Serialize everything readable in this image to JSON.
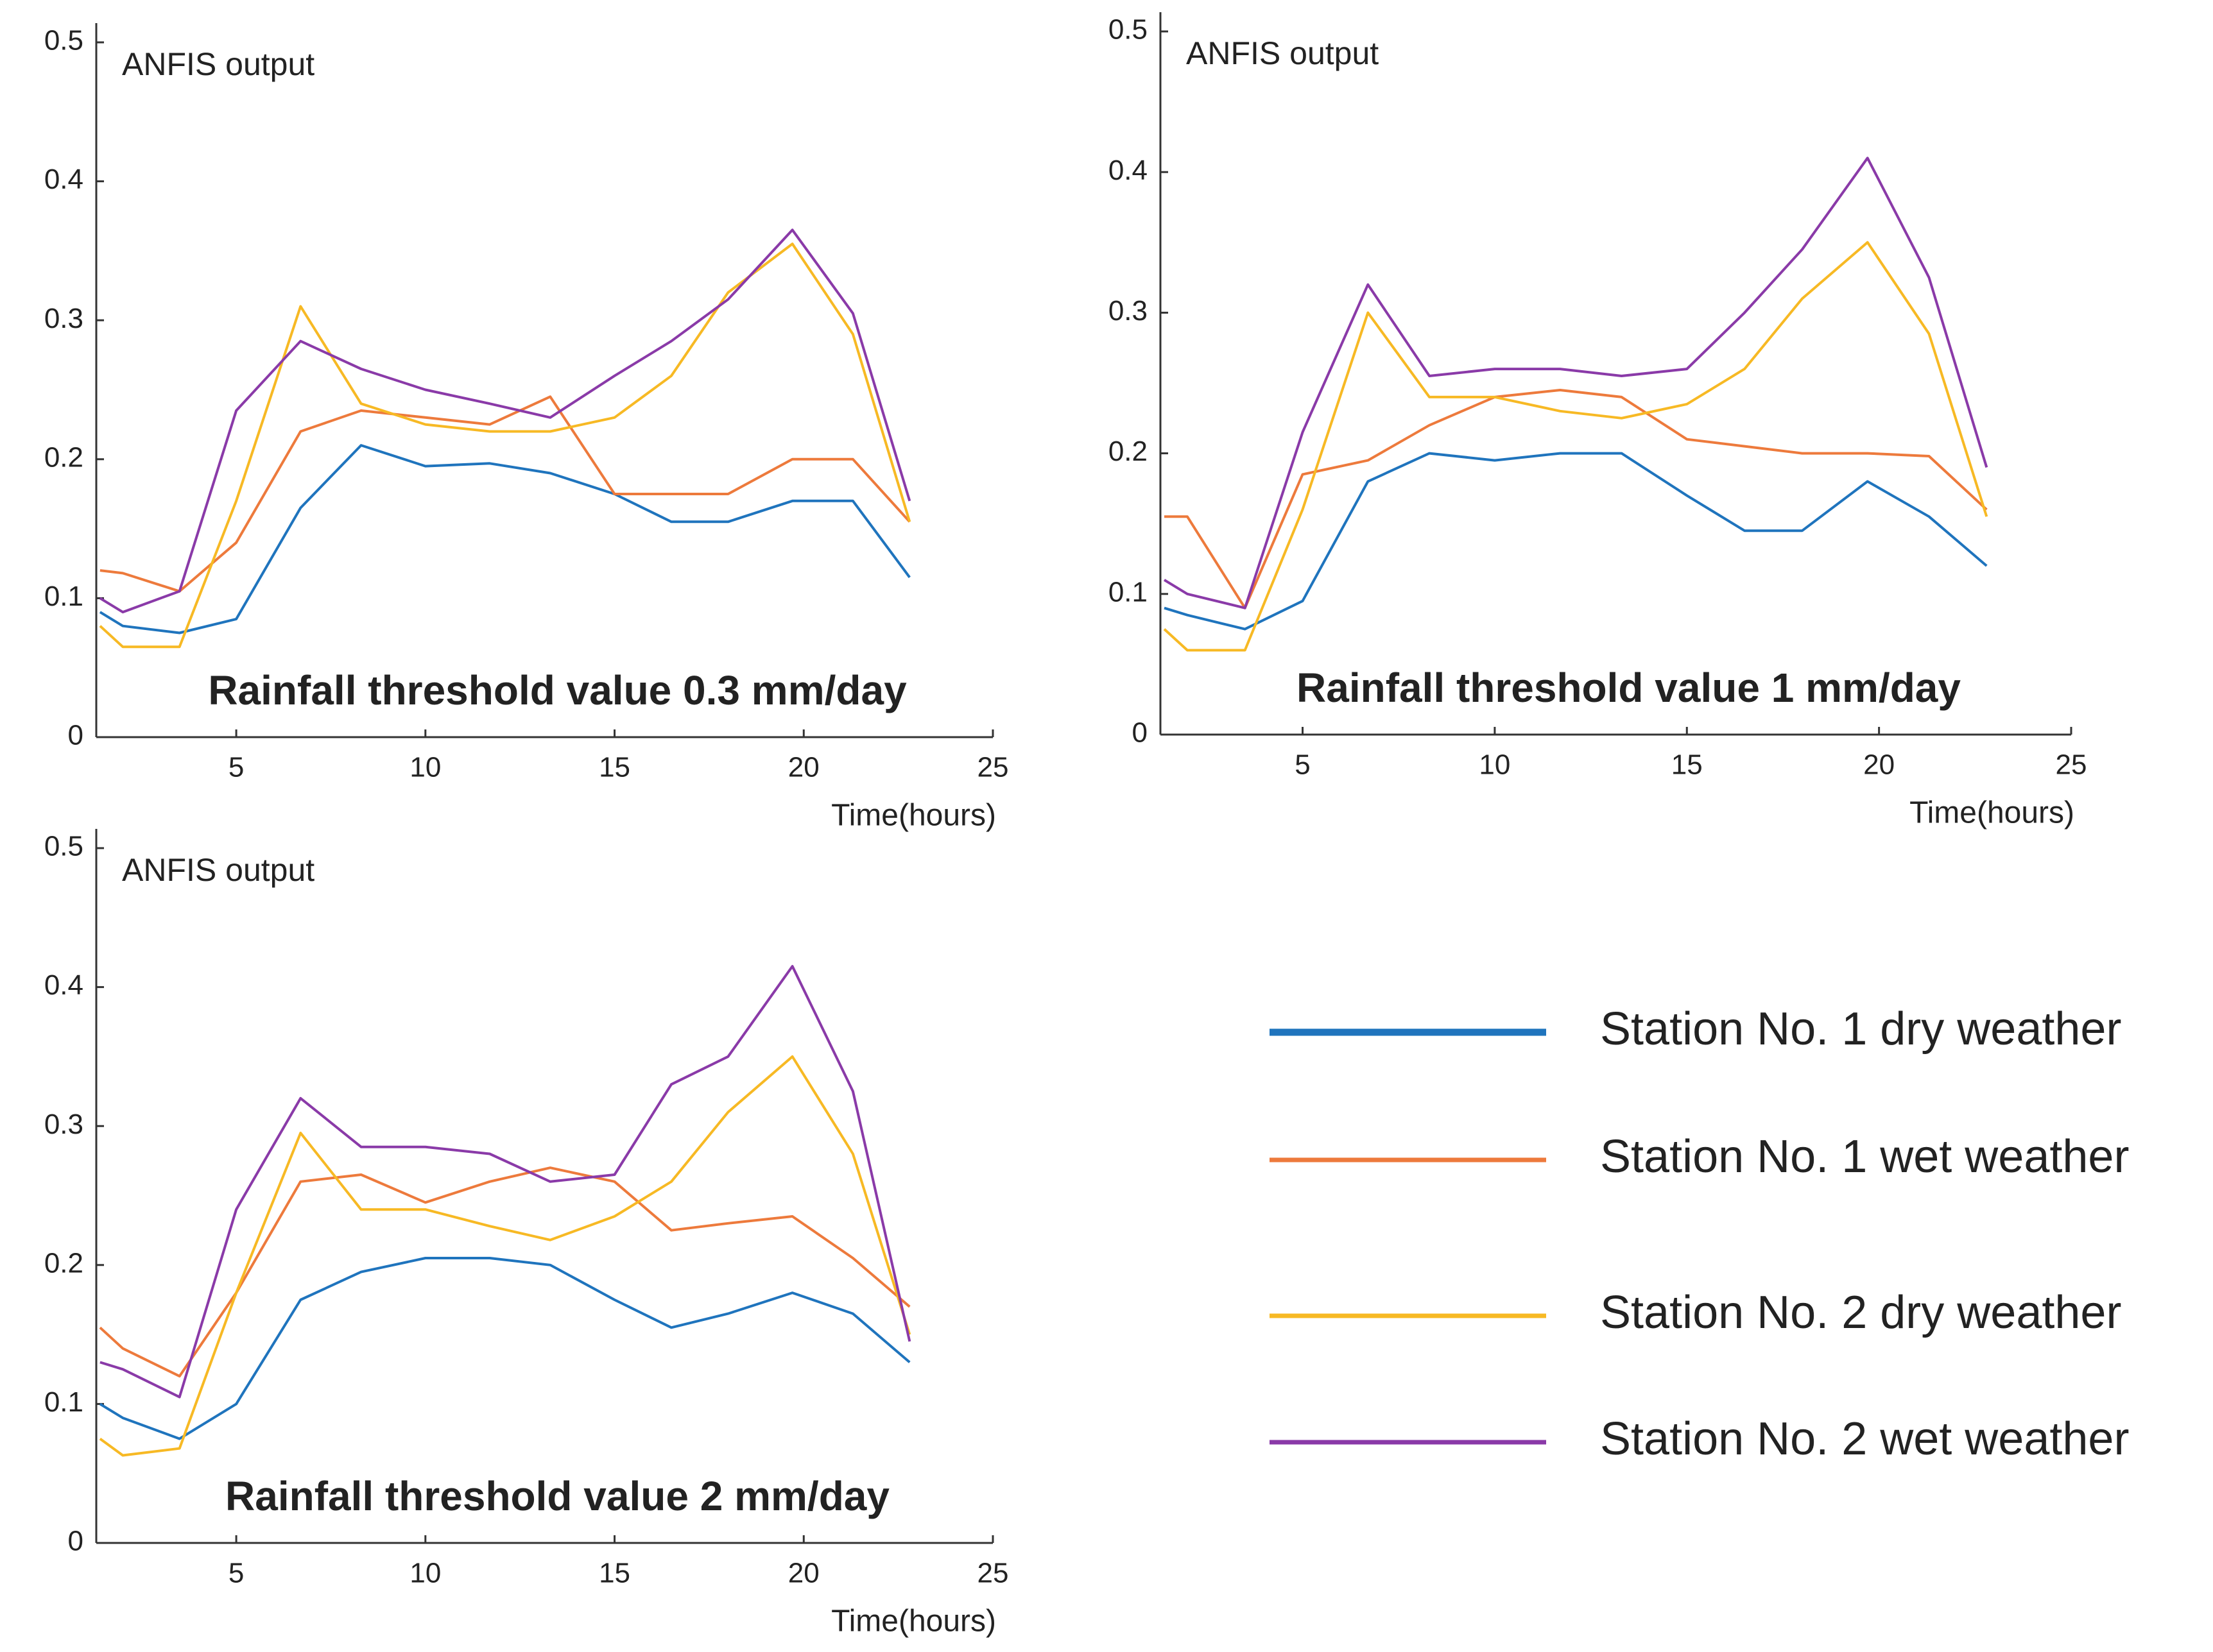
{
  "chart_data": [
    {
      "type": "line",
      "title": "Rainfall threshold value 0.3 mm/day",
      "y_label": "ANFIS output",
      "x_label": "Time(hours)",
      "x": [
        1.4,
        2,
        3.5,
        5,
        6.7,
        8.3,
        10,
        11.7,
        13.3,
        15,
        16.5,
        18,
        19.7,
        21.3,
        22.8
      ],
      "xlim": [
        1.3,
        25
      ],
      "xticks": [
        5,
        10,
        15,
        20,
        25
      ],
      "ylim": [
        0,
        0.5
      ],
      "yticks": [
        0,
        0.1,
        0.2,
        0.3,
        0.4,
        0.5
      ],
      "series": [
        {
          "values": [
            0.09,
            0.08,
            0.075,
            0.085,
            0.165,
            0.21,
            0.195,
            0.197,
            0.19,
            0.175,
            0.155,
            0.155,
            0.17,
            0.17,
            0.115
          ]
        },
        {
          "values": [
            0.12,
            0.118,
            0.105,
            0.14,
            0.22,
            0.235,
            0.23,
            0.225,
            0.245,
            0.175,
            0.175,
            0.175,
            0.2,
            0.2,
            0.155
          ]
        },
        {
          "values": [
            0.08,
            0.065,
            0.065,
            0.17,
            0.31,
            0.24,
            0.225,
            0.22,
            0.22,
            0.23,
            0.26,
            0.32,
            0.355,
            0.29,
            0.155
          ]
        },
        {
          "values": [
            0.1,
            0.09,
            0.105,
            0.235,
            0.285,
            0.265,
            0.25,
            0.24,
            0.23,
            0.26,
            0.285,
            0.315,
            0.365,
            0.305,
            0.17
          ]
        }
      ]
    },
    {
      "type": "line",
      "title": "Rainfall threshold value 1 mm/day",
      "y_label": "ANFIS output",
      "x_label": "Time(hours)",
      "x": [
        1.4,
        2,
        3.5,
        5,
        6.7,
        8.3,
        10,
        11.7,
        13.3,
        15,
        16.5,
        18,
        19.7,
        21.3,
        22.8
      ],
      "xlim": [
        1.3,
        25
      ],
      "xticks": [
        5,
        10,
        15,
        20,
        25
      ],
      "ylim": [
        0,
        0.5
      ],
      "yticks": [
        0,
        0.1,
        0.2,
        0.3,
        0.4,
        0.5
      ],
      "series": [
        {
          "values": [
            0.09,
            0.085,
            0.075,
            0.095,
            0.18,
            0.2,
            0.195,
            0.2,
            0.2,
            0.17,
            0.145,
            0.145,
            0.18,
            0.155,
            0.12
          ]
        },
        {
          "values": [
            0.155,
            0.155,
            0.09,
            0.185,
            0.195,
            0.22,
            0.24,
            0.245,
            0.24,
            0.21,
            0.205,
            0.2,
            0.2,
            0.198,
            0.16
          ]
        },
        {
          "values": [
            0.075,
            0.06,
            0.06,
            0.16,
            0.3,
            0.24,
            0.24,
            0.23,
            0.225,
            0.235,
            0.26,
            0.31,
            0.35,
            0.285,
            0.155
          ]
        },
        {
          "values": [
            0.11,
            0.1,
            0.09,
            0.215,
            0.32,
            0.255,
            0.26,
            0.26,
            0.255,
            0.26,
            0.3,
            0.345,
            0.41,
            0.325,
            0.19
          ]
        }
      ]
    },
    {
      "type": "line",
      "title": "Rainfall threshold value 2 mm/day",
      "y_label": "ANFIS output",
      "x_label": "Time(hours)",
      "x": [
        1.4,
        2,
        3.5,
        5,
        6.7,
        8.3,
        10,
        11.7,
        13.3,
        15,
        16.5,
        18,
        19.7,
        21.3,
        22.8
      ],
      "xlim": [
        1.3,
        25
      ],
      "xticks": [
        5,
        10,
        15,
        20,
        25
      ],
      "ylim": [
        0,
        0.5
      ],
      "yticks": [
        0,
        0.1,
        0.2,
        0.3,
        0.4,
        0.5
      ],
      "series": [
        {
          "values": [
            0.1,
            0.09,
            0.075,
            0.1,
            0.175,
            0.195,
            0.205,
            0.205,
            0.2,
            0.175,
            0.155,
            0.165,
            0.18,
            0.165,
            0.13
          ]
        },
        {
          "values": [
            0.155,
            0.14,
            0.12,
            0.18,
            0.26,
            0.265,
            0.245,
            0.26,
            0.27,
            0.26,
            0.225,
            0.23,
            0.235,
            0.205,
            0.17
          ]
        },
        {
          "values": [
            0.075,
            0.063,
            0.068,
            0.18,
            0.295,
            0.24,
            0.24,
            0.228,
            0.218,
            0.235,
            0.26,
            0.31,
            0.35,
            0.28,
            0.15
          ]
        },
        {
          "values": [
            0.13,
            0.125,
            0.105,
            0.24,
            0.32,
            0.285,
            0.285,
            0.28,
            0.26,
            0.265,
            0.33,
            0.35,
            0.415,
            0.325,
            0.145
          ]
        }
      ]
    }
  ],
  "legend": [
    {
      "name": "Station No. 1 dry weather",
      "color": "#1f74bd"
    },
    {
      "name": "Station No. 1 wet weather",
      "color": "#ed7a3c"
    },
    {
      "name": "Station No. 2 dry weather",
      "color": "#f7b924"
    },
    {
      "name": "Station No. 2 wet weather",
      "color": "#8a3aa8"
    }
  ]
}
